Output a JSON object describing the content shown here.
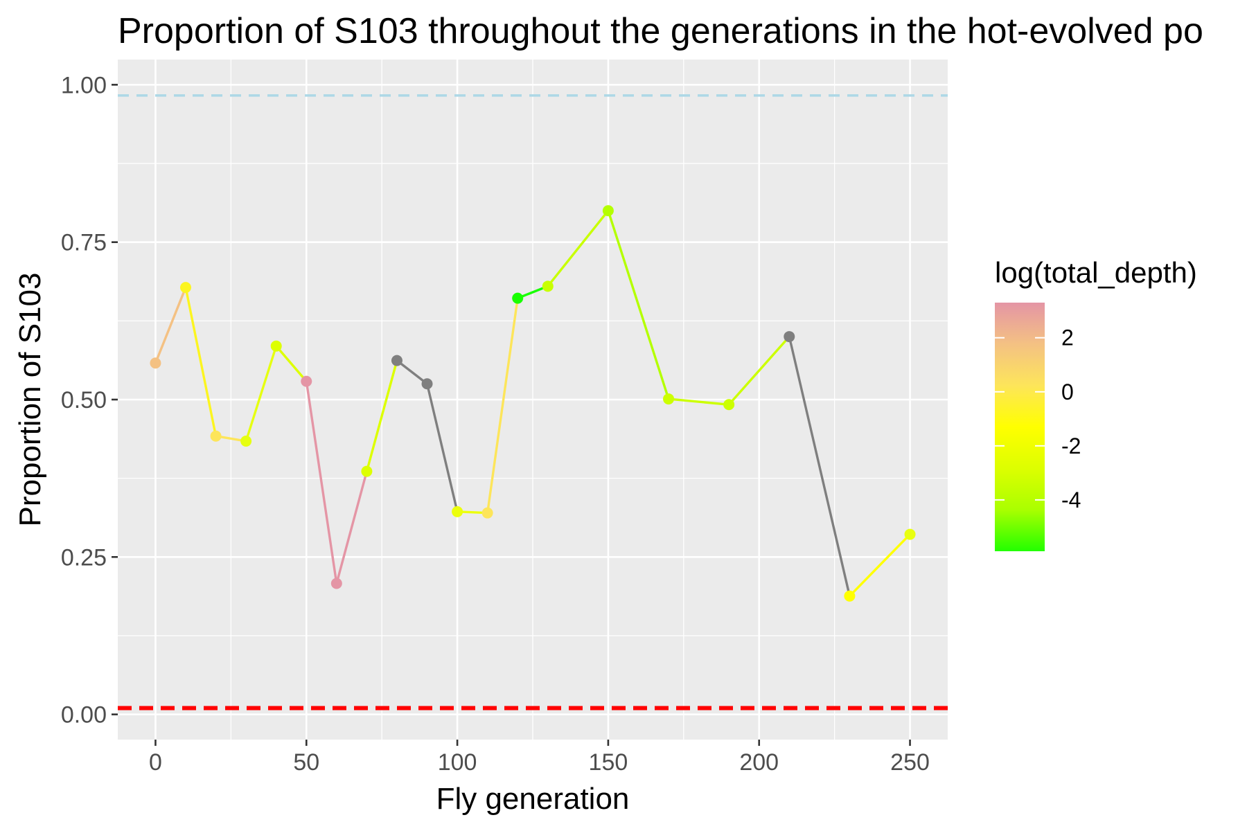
{
  "chart_data": {
    "type": "line",
    "title": "Proportion of S103 throughout the generations in the hot-evolved po",
    "xlabel": "Fly generation",
    "ylabel": "Proportion of S103",
    "xlim": [
      -12.5,
      262.5
    ],
    "ylim": [
      -0.04,
      1.04
    ],
    "x_ticks": [
      0,
      50,
      100,
      150,
      200,
      250
    ],
    "x_tick_labels": [
      "0",
      "50",
      "100",
      "150",
      "200",
      "250"
    ],
    "y_ticks": [
      0,
      0.25,
      0.5,
      0.75,
      1.0
    ],
    "y_tick_labels": [
      "0.00",
      "0.25",
      "0.50",
      "0.75",
      "1.00"
    ],
    "grid": true,
    "reference_lines": [
      {
        "y": 0.983,
        "color": "#add8e6",
        "style": "dashed"
      },
      {
        "y": 0.01,
        "color": "#ff0000",
        "style": "dashed"
      }
    ],
    "points": [
      {
        "x": 0,
        "y": 0.558,
        "color": "#f4c183"
      },
      {
        "x": 10,
        "y": 0.678,
        "color": "#fcf520"
      },
      {
        "x": 20,
        "y": 0.442,
        "color": "#fde55a"
      },
      {
        "x": 30,
        "y": 0.434,
        "color": "#e6ff11"
      },
      {
        "x": 40,
        "y": 0.585,
        "color": "#ddff00"
      },
      {
        "x": 50,
        "y": 0.529,
        "color": "#e495a5"
      },
      {
        "x": 60,
        "y": 0.208,
        "color": "#e495a5"
      },
      {
        "x": 70,
        "y": 0.386,
        "color": "#ddff00"
      },
      {
        "x": 80,
        "y": 0.562,
        "color": "#7f7f7f"
      },
      {
        "x": 90,
        "y": 0.525,
        "color": "#7f7f7f"
      },
      {
        "x": 100,
        "y": 0.322,
        "color": "#ecff0c"
      },
      {
        "x": 110,
        "y": 0.32,
        "color": "#fde55a"
      },
      {
        "x": 120,
        "y": 0.661,
        "color": "#18ff00"
      },
      {
        "x": 130,
        "y": 0.68,
        "color": "#c8ff00"
      },
      {
        "x": 150,
        "y": 0.8,
        "color": "#b4ff00"
      },
      {
        "x": 170,
        "y": 0.501,
        "color": "#ccff00"
      },
      {
        "x": 190,
        "y": 0.492,
        "color": "#ccff00"
      },
      {
        "x": 210,
        "y": 0.6,
        "color": "#7f7f7f"
      },
      {
        "x": 230,
        "y": 0.188,
        "color": "#ffff00"
      },
      {
        "x": 250,
        "y": 0.286,
        "color": "#e8ff10"
      }
    ],
    "legend": {
      "title": "log(total_depth)",
      "placement": "right",
      "breaks": [
        2,
        0,
        -2,
        -4
      ],
      "labels": [
        "2",
        "0",
        "-2",
        "-4"
      ],
      "range": [
        -5.9,
        3.3
      ],
      "colors": [
        "#e495a5",
        "#f4c183",
        "#fde55a",
        "#ffff00",
        "#ddff00",
        "#aaff00",
        "#22ff00"
      ]
    }
  }
}
